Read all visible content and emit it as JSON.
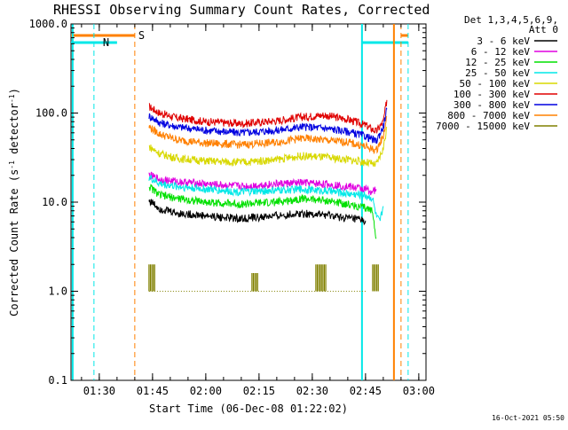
{
  "chart_data": {
    "type": "line",
    "title": "RHESSI Observing Summary Count Rates, Corrected",
    "xlabel": "Start Time (06-Dec-08 01:22:02)",
    "ylabel_main": "Corrected Count Rate (s",
    "ylabel_sup1": "-1",
    "ylabel_mid": " detector",
    "ylabel_sup2": "-1",
    "ylabel_end": ")",
    "yscale": "log",
    "ylim": [
      0.1,
      1000
    ],
    "xlim": [
      "01:22:02",
      "03:02:02"
    ],
    "x_ticks": [
      "01:30",
      "01:45",
      "02:00",
      "02:15",
      "02:30",
      "02:45",
      "03:00"
    ],
    "y_ticks": [
      "0.1",
      "1.0",
      "10.0",
      "100.0",
      "1000.0"
    ],
    "legend": {
      "header1": "Det 1,3,4,5,6,9,",
      "header2": "Att 0",
      "entries": [
        {
          "label": "3 - 6 keV",
          "color": "#000000"
        },
        {
          "label": "6 - 12 keV",
          "color": "#e000e0"
        },
        {
          "label": "12 - 25 keV",
          "color": "#00e000"
        },
        {
          "label": "25 - 50 keV",
          "color": "#00e8e8"
        },
        {
          "label": "50 - 100 keV",
          "color": "#d8d800"
        },
        {
          "label": "100 - 300 keV",
          "color": "#e00000"
        },
        {
          "label": "300 - 800 keV",
          "color": "#0000e0"
        },
        {
          "label": "800 - 7000 keV",
          "color": "#ff8000"
        },
        {
          "label": "7000 - 15000 keV",
          "color": "#808000"
        }
      ]
    },
    "flags": [
      {
        "label": "N",
        "color": "#00e8e8"
      },
      {
        "label": "S",
        "color": "#ff8000"
      }
    ],
    "series": [
      {
        "color": "#e00000",
        "x": [
          "01:44",
          "01:47",
          "01:52",
          "02:00",
          "02:10",
          "02:20",
          "02:27",
          "02:33",
          "02:40",
          "02:45",
          "02:48",
          "02:50",
          "02:51"
        ],
        "values": [
          118,
          100,
          88,
          80,
          76,
          82,
          90,
          95,
          85,
          73,
          62,
          80,
          140
        ]
      },
      {
        "color": "#0000e0",
        "x": [
          "01:44",
          "01:47",
          "01:52",
          "02:00",
          "02:10",
          "02:20",
          "02:27",
          "02:33",
          "02:40",
          "02:45",
          "02:48",
          "02:50",
          "02:51"
        ],
        "values": [
          93,
          78,
          70,
          64,
          60,
          64,
          70,
          68,
          62,
          55,
          48,
          70,
          110
        ]
      },
      {
        "color": "#ff8000",
        "x": [
          "01:44",
          "01:47",
          "01:52",
          "02:00",
          "02:10",
          "02:20",
          "02:27",
          "02:33",
          "02:40",
          "02:45",
          "02:48",
          "02:50",
          "02:51"
        ],
        "values": [
          70,
          58,
          50,
          46,
          44,
          47,
          52,
          50,
          47,
          42,
          38,
          55,
          90
        ]
      },
      {
        "color": "#d8d800",
        "x": [
          "01:44",
          "01:47",
          "01:52",
          "02:00",
          "02:10",
          "02:20",
          "02:27",
          "02:33",
          "02:40",
          "02:45",
          "02:48",
          "02:50",
          "02:51"
        ],
        "values": [
          42,
          35,
          31,
          29,
          28,
          30,
          33,
          32,
          30,
          28,
          26,
          40,
          70
        ]
      },
      {
        "color": "#e000e0",
        "x": [
          "01:44",
          "01:47",
          "01:52",
          "02:00",
          "02:10",
          "02:20",
          "02:27",
          "02:33",
          "02:40",
          "02:45",
          "02:47",
          "02:48"
        ],
        "values": [
          20,
          18,
          17,
          16,
          15,
          16,
          16.5,
          16,
          15,
          14,
          13,
          14
        ]
      },
      {
        "color": "#00e8e8",
        "x": [
          "01:44",
          "01:47",
          "01:52",
          "02:00",
          "02:10",
          "02:20",
          "02:27",
          "02:33",
          "02:40",
          "02:45",
          "02:47",
          "02:48",
          "02:49",
          "02:50"
        ],
        "values": [
          19,
          16,
          15,
          14,
          13,
          13.5,
          14,
          13.5,
          12.5,
          12,
          11,
          7,
          6,
          9
        ]
      },
      {
        "color": "#00e000",
        "x": [
          "01:44",
          "01:47",
          "01:52",
          "02:00",
          "02:10",
          "02:20",
          "02:27",
          "02:33",
          "02:40",
          "02:45",
          "02:47",
          "02:48"
        ],
        "values": [
          15,
          12,
          11,
          10,
          9.5,
          10,
          11,
          10.5,
          9.5,
          8.5,
          8,
          4
        ]
      },
      {
        "color": "#000000",
        "x": [
          "01:44",
          "01:47",
          "01:52",
          "02:00",
          "02:10",
          "02:20",
          "02:27",
          "02:33",
          "02:40",
          "02:45"
        ],
        "values": [
          10.5,
          8.5,
          7.5,
          7,
          6.5,
          7,
          7.5,
          7.2,
          6.6,
          6.2
        ]
      }
    ],
    "bursts_7000_15000_keV": [
      {
        "x": "01:44",
        "values": [
          2.0,
          1.0
        ]
      },
      {
        "x": "02:13",
        "values": [
          1.6,
          1.0
        ]
      },
      {
        "x": "02:31",
        "values": [
          2.0,
          1.0
        ]
      },
      {
        "x": "02:47",
        "values": [
          2.0,
          1.0
        ]
      }
    ],
    "vlines": [
      {
        "x": "01:22:30",
        "color": "#00e8e8",
        "style": "solid"
      },
      {
        "x": "01:28:30",
        "color": "#00e8e8",
        "style": "dashed"
      },
      {
        "x": "01:40:00",
        "color": "#ff8000",
        "style": "dashed"
      },
      {
        "x": "02:44:00",
        "color": "#00e8e8",
        "style": "solid"
      },
      {
        "x": "02:53:00",
        "color": "#ff8000",
        "style": "solid"
      },
      {
        "x": "02:55:00",
        "color": "#ff8000",
        "style": "dashed"
      },
      {
        "x": "02:57:00",
        "color": "#00e8e8",
        "style": "dashed"
      }
    ],
    "grid": false
  },
  "timestamp": "16-Oct-2021 05:50"
}
